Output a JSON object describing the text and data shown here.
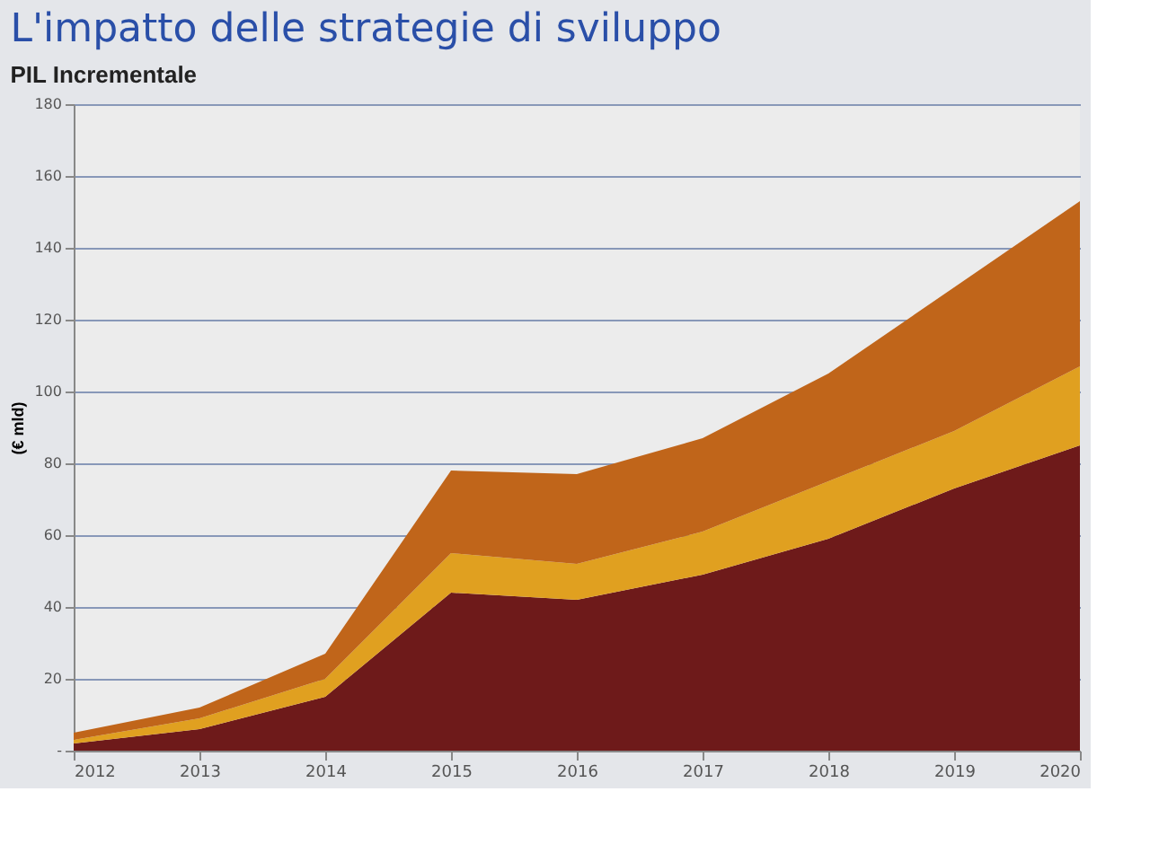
{
  "chart_data": {
    "type": "area",
    "stacked": true,
    "title": "L'impatto delle strategie di sviluppo",
    "subtitle": "PIL Incrementale",
    "ylabel": "(€ mld)",
    "x": [
      2012,
      2013,
      2014,
      2015,
      2016,
      2017,
      2018,
      2019,
      2020
    ],
    "series": [
      {
        "color": "#6e1a1a",
        "values": [
          2,
          6,
          15,
          44,
          42,
          49,
          59,
          73,
          85
        ]
      },
      {
        "color": "#e0a020",
        "values": [
          1,
          3,
          5,
          11,
          10,
          12,
          16,
          16,
          22
        ]
      },
      {
        "color": "#c0651a",
        "values": [
          2,
          3,
          7,
          23,
          25,
          26,
          30,
          40,
          46
        ]
      }
    ],
    "xlim": [
      2012,
      2020
    ],
    "xticks": [
      2012,
      2013,
      2014,
      2015,
      2016,
      2017,
      2018,
      2019,
      2020
    ],
    "ylim": [
      0,
      180
    ],
    "yticks": [
      {
        "value": 0,
        "label": "-"
      },
      20,
      40,
      60,
      80,
      100,
      120,
      140,
      160,
      180
    ],
    "grid": "y",
    "legend": false
  }
}
